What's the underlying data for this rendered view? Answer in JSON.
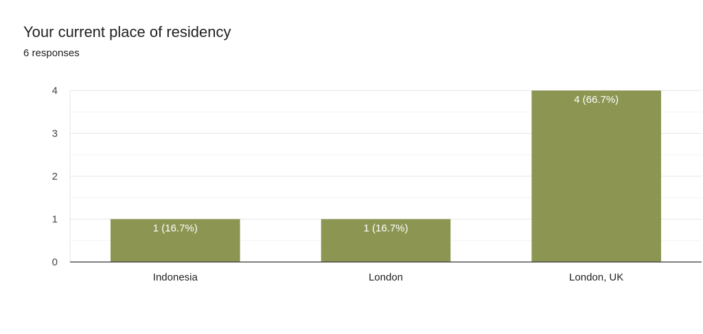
{
  "header": {
    "title": "Your current place of residency",
    "responses": "6 responses"
  },
  "colors": {
    "bar": "#8c9652",
    "grid_major": "#e6e6e6",
    "grid_minor": "#f3f3f3",
    "axis": "#333333"
  },
  "chart_data": {
    "type": "bar",
    "categories": [
      "Indonesia",
      "London",
      "London, UK"
    ],
    "values": [
      1,
      1,
      4
    ],
    "data_labels": [
      "1 (16.7%)",
      "1 (16.7%)",
      "4 (66.7%)"
    ],
    "ylim": [
      0,
      4
    ],
    "yticks": [
      0,
      1,
      2,
      3,
      4
    ],
    "grid": true,
    "legend": "none"
  }
}
